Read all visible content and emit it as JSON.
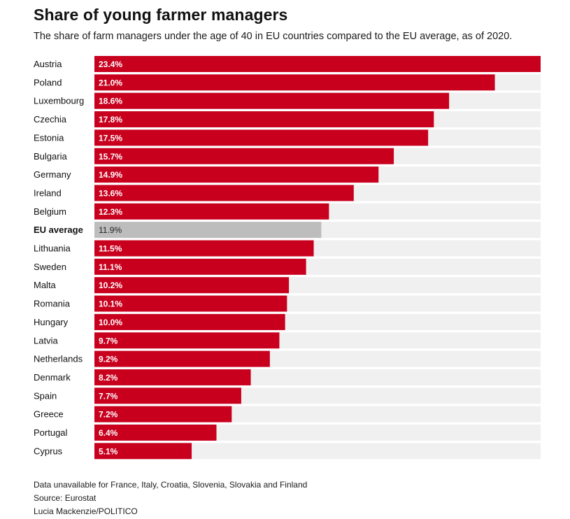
{
  "title": "Share of young farmer managers",
  "subtitle": "The share of farm managers under the age of 40 in EU countries compared to the EU average, as of 2020.",
  "colors": {
    "bar": "#c8001e",
    "average_bar": "#bdbdbd",
    "track": "#f0f0f0",
    "label_on_bar": "#ffffff",
    "label_on_average": "#222222"
  },
  "chart_data": {
    "type": "bar",
    "orientation": "horizontal",
    "xlim": [
      0,
      23.4
    ],
    "grid": false,
    "categories": [
      "Austria",
      "Poland",
      "Luxembourg",
      "Czechia",
      "Estonia",
      "Bulgaria",
      "Germany",
      "Ireland",
      "Belgium",
      "EU average",
      "Lithuania",
      "Sweden",
      "Malta",
      "Romania",
      "Hungary",
      "Latvia",
      "Netherlands",
      "Denmark",
      "Spain",
      "Greece",
      "Portugal",
      "Cyprus"
    ],
    "values": [
      23.4,
      21.0,
      18.6,
      17.8,
      17.5,
      15.7,
      14.9,
      13.6,
      12.3,
      11.9,
      11.5,
      11.1,
      10.2,
      10.1,
      10.0,
      9.7,
      9.2,
      8.2,
      7.7,
      7.2,
      6.4,
      5.1
    ],
    "value_labels": [
      "23.4%",
      "21.0%",
      "18.6%",
      "17.8%",
      "17.5%",
      "15.7%",
      "14.9%",
      "13.6%",
      "12.3%",
      "11.9%",
      "11.5%",
      "11.1%",
      "10.2%",
      "10.1%",
      "10.0%",
      "9.7%",
      "9.2%",
      "8.2%",
      "7.7%",
      "7.2%",
      "6.4%",
      "5.1%"
    ],
    "highlight_category": "EU average"
  },
  "footer": {
    "note": "Data unavailable for France, Italy, Croatia, Slovenia, Slovakia and Finland",
    "source": "Source: Eurostat",
    "credit": "Lucia Mackenzie/POLITICO"
  }
}
